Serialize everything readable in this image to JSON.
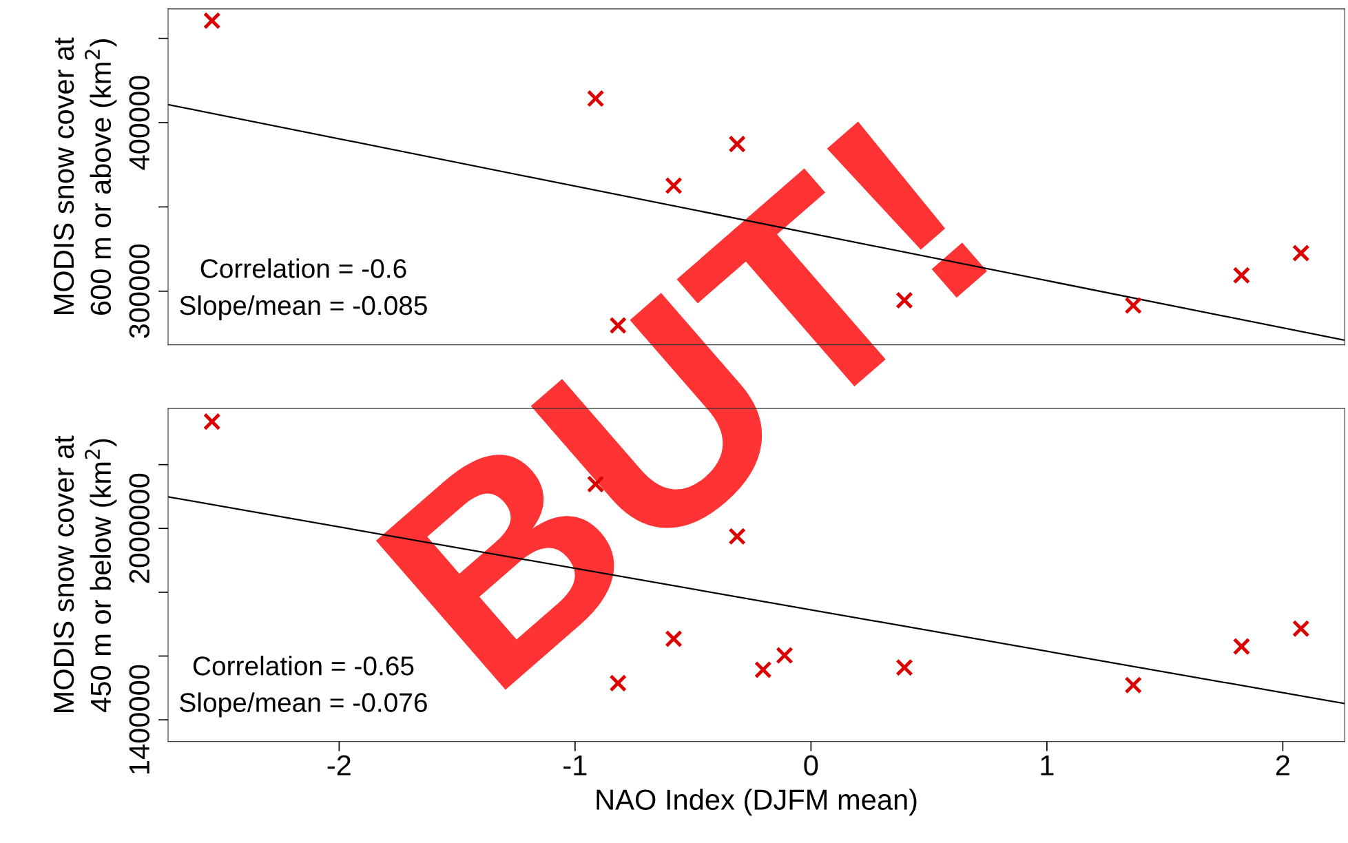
{
  "chart_data": [
    {
      "type": "scatter",
      "ylabel": "MODIS snow cover at\n600 m or above (km$^{2}$)",
      "xlim": [
        -2.725,
        2.262
      ],
      "xticks": [
        -2,
        -1,
        0,
        1,
        2
      ],
      "ylim": [
        268200,
        467500
      ],
      "yticks": [
        {
          "value": 450000,
          "label": null
        },
        400000,
        {
          "value": 350000,
          "label": null
        },
        300000
      ],
      "tick_labels": "y",
      "grid": false,
      "legend": false,
      "series": [
        {
          "color": "#dd0000",
          "marker": "cross",
          "x": [
            -2.539,
            -0.913,
            -0.818,
            -0.582,
            -0.313,
            -0.203,
            -0.112,
            0.396,
            1.366,
            1.825,
            2.077
          ],
          "values": [
            460500,
            414300,
            279700,
            362600,
            387300,
            null,
            null,
            294600,
            291500,
            309400,
            322600
          ]
        },
        {
          "type": "line",
          "marker": "none",
          "color": "#000000",
          "x": [
            -2.725,
            2.262
          ],
          "values": [
            410700,
            270900
          ]
        }
      ],
      "annotations": [
        "Correlation = -0.6",
        "Slope/mean = -0.085"
      ]
    },
    {
      "type": "scatter",
      "ylabel": "MODIS snow cover at\n450 m or below (km$^{2}$)",
      "xlabel": "NAO Index (DJFM mean)",
      "xlim": [
        -2.725,
        2.262
      ],
      "xticks": [
        -2,
        -1,
        0,
        1,
        2
      ],
      "ylim": [
        1332000,
        2376000
      ],
      "yticks": [
        {
          "value": 2200000,
          "label": null
        },
        2000000,
        {
          "value": 1800000,
          "label": null
        },
        {
          "value": 1600000,
          "label": null
        },
        1400000
      ],
      "grid": false,
      "legend": false,
      "series": [
        {
          "color": "#dd0000",
          "marker": "cross",
          "x": [
            -2.539,
            -0.913,
            -0.818,
            -0.582,
            -0.313,
            -0.203,
            -0.112,
            0.396,
            1.366,
            1.825,
            2.077
          ],
          "values": [
            2335000,
            2139000,
            1515000,
            1654000,
            1975000,
            1557000,
            1602000,
            1564000,
            1509000,
            1630000,
            1686000
          ]
        },
        {
          "type": "line",
          "marker": "none",
          "color": "#000000",
          "x": [
            -2.725,
            2.262
          ],
          "values": [
            2099000,
            1451000
          ]
        }
      ],
      "annotations": [
        "Correlation = -0.65",
        "Slope/mean = -0.076",
        "BUT!"
      ]
    }
  ]
}
